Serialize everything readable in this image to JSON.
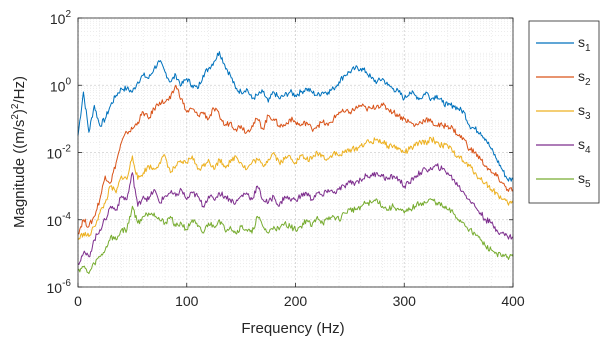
{
  "chart_data": {
    "type": "line",
    "title": "",
    "xlabel": "Frequency (Hz)",
    "ylabel": "Magnitude ((m/s²)²/Hz)",
    "xlim": [
      0,
      400
    ],
    "ylim_log10": [
      -6,
      2
    ],
    "y_scale": "log",
    "grid": true,
    "legend_position": "outside-right-top",
    "x_ticks": [
      0,
      100,
      200,
      300,
      400
    ],
    "x_tick_labels": [
      "0",
      "100",
      "200",
      "300",
      "400"
    ],
    "y_ticks_log10": [
      -6,
      -4,
      -2,
      0,
      2
    ],
    "y_tick_labels": [
      {
        "base": "10",
        "exp": "-6"
      },
      {
        "base": "10",
        "exp": "-4"
      },
      {
        "base": "10",
        "exp": "-2"
      },
      {
        "base": "10",
        "exp": "0"
      },
      {
        "base": "10",
        "exp": "2"
      }
    ],
    "x": [
      0,
      5,
      10,
      15,
      20,
      25,
      30,
      35,
      40,
      45,
      50,
      55,
      60,
      65,
      70,
      75,
      80,
      85,
      90,
      95,
      100,
      105,
      110,
      115,
      120,
      125,
      130,
      135,
      140,
      145,
      150,
      155,
      160,
      165,
      170,
      175,
      180,
      185,
      190,
      195,
      200,
      205,
      210,
      215,
      220,
      225,
      230,
      235,
      240,
      245,
      250,
      255,
      260,
      265,
      270,
      275,
      280,
      285,
      290,
      295,
      300,
      305,
      310,
      315,
      320,
      325,
      330,
      335,
      340,
      345,
      350,
      355,
      360,
      365,
      370,
      375,
      380,
      385,
      390,
      395,
      400
    ],
    "series": [
      {
        "name": "s",
        "sub": "1",
        "color": "#0072BD",
        "values_log10": [
          -1.5,
          -0.2,
          -1.4,
          -0.6,
          -1.2,
          -1.0,
          -0.6,
          -0.3,
          -0.1,
          -0.1,
          -0.2,
          0.1,
          0.3,
          0.2,
          0.5,
          0.7,
          0.4,
          0.1,
          0.3,
          0.0,
          0.2,
          0.0,
          -0.1,
          0.3,
          0.5,
          0.7,
          1.0,
          0.6,
          0.3,
          -0.1,
          -0.2,
          -0.1,
          -0.4,
          -0.3,
          -0.2,
          -0.5,
          -0.2,
          -0.4,
          -0.3,
          -0.2,
          -0.3,
          -0.2,
          -0.1,
          -0.2,
          -0.3,
          -0.2,
          -0.2,
          -0.1,
          0.1,
          0.3,
          0.4,
          0.5,
          0.5,
          0.4,
          0.2,
          0.1,
          0.2,
          0.0,
          -0.1,
          -0.2,
          -0.4,
          -0.2,
          -0.3,
          -0.4,
          -0.2,
          -0.4,
          -0.3,
          -0.5,
          -0.6,
          -0.6,
          -0.7,
          -0.8,
          -1.2,
          -1.3,
          -1.4,
          -1.6,
          -1.9,
          -2.2,
          -2.5,
          -2.8,
          -2.8
        ]
      },
      {
        "name": "s",
        "sub": "2",
        "color": "#D95319",
        "values_log10": [
          -4.4,
          -4.0,
          -4.2,
          -3.9,
          -3.4,
          -2.7,
          -2.9,
          -2.3,
          -1.7,
          -1.4,
          -1.3,
          -1.1,
          -0.8,
          -1.0,
          -0.7,
          -0.5,
          -0.5,
          -0.4,
          0.0,
          -0.4,
          -0.8,
          -0.7,
          -0.9,
          -0.8,
          -1.0,
          -0.7,
          -0.9,
          -1.2,
          -1.1,
          -1.3,
          -1.2,
          -1.4,
          -1.2,
          -1.0,
          -1.3,
          -0.9,
          -1.0,
          -1.2,
          -1.2,
          -1.0,
          -1.1,
          -1.2,
          -1.1,
          -1.3,
          -1.2,
          -1.1,
          -1.2,
          -1.0,
          -0.8,
          -0.8,
          -0.8,
          -0.7,
          -0.6,
          -0.7,
          -0.7,
          -0.6,
          -0.6,
          -0.7,
          -0.8,
          -0.9,
          -1.0,
          -1.1,
          -1.2,
          -1.1,
          -1.0,
          -1.1,
          -1.2,
          -1.2,
          -1.2,
          -1.3,
          -1.5,
          -1.6,
          -1.9,
          -2.0,
          -2.2,
          -2.4,
          -2.6,
          -2.7,
          -2.9,
          -3.1,
          -3.1
        ]
      },
      {
        "name": "s",
        "sub": "3",
        "color": "#EDB120",
        "values_log10": [
          -4.6,
          -4.4,
          -4.5,
          -4.2,
          -3.8,
          -3.5,
          -3.0,
          -3.2,
          -2.7,
          -2.8,
          -2.1,
          -2.8,
          -2.6,
          -2.4,
          -2.5,
          -2.3,
          -2.1,
          -2.6,
          -2.4,
          -2.3,
          -2.3,
          -2.1,
          -2.5,
          -2.4,
          -2.2,
          -2.5,
          -2.2,
          -2.4,
          -2.3,
          -2.1,
          -2.3,
          -2.5,
          -2.3,
          -2.2,
          -2.4,
          -2.2,
          -2.0,
          -2.3,
          -2.2,
          -2.1,
          -2.3,
          -2.1,
          -2.2,
          -2.2,
          -2.0,
          -2.1,
          -2.2,
          -2.0,
          -2.1,
          -2.0,
          -1.9,
          -1.9,
          -1.8,
          -1.7,
          -1.7,
          -1.6,
          -1.7,
          -1.8,
          -1.8,
          -1.9,
          -2.0,
          -1.9,
          -1.8,
          -1.7,
          -1.7,
          -1.6,
          -1.7,
          -1.8,
          -1.8,
          -2.0,
          -2.1,
          -2.3,
          -2.4,
          -2.6,
          -2.8,
          -2.9,
          -3.1,
          -3.2,
          -3.4,
          -3.5,
          -3.5
        ]
      },
      {
        "name": "s",
        "sub": "4",
        "color": "#7E2F8E",
        "values_log10": [
          -5.3,
          -5.0,
          -5.1,
          -4.6,
          -4.3,
          -4.0,
          -3.6,
          -3.7,
          -3.3,
          -3.4,
          -2.6,
          -3.6,
          -3.3,
          -3.4,
          -3.1,
          -3.5,
          -3.3,
          -3.2,
          -3.3,
          -3.1,
          -3.4,
          -3.2,
          -3.3,
          -3.6,
          -3.3,
          -3.4,
          -3.2,
          -3.3,
          -3.4,
          -3.5,
          -3.3,
          -3.2,
          -3.4,
          -3.0,
          -3.4,
          -3.5,
          -3.3,
          -3.6,
          -3.3,
          -3.4,
          -3.4,
          -3.3,
          -3.2,
          -3.4,
          -3.2,
          -3.3,
          -3.1,
          -3.2,
          -3.1,
          -3.0,
          -2.9,
          -2.9,
          -2.8,
          -2.7,
          -2.7,
          -2.6,
          -2.7,
          -2.8,
          -2.7,
          -2.8,
          -3.0,
          -2.9,
          -2.7,
          -2.6,
          -2.5,
          -2.5,
          -2.4,
          -2.5,
          -2.6,
          -2.8,
          -3.0,
          -3.2,
          -3.4,
          -3.6,
          -3.8,
          -4.0,
          -4.1,
          -4.3,
          -4.4,
          -4.5,
          -4.5
        ]
      },
      {
        "name": "s",
        "sub": "5",
        "color": "#77AC30",
        "values_log10": [
          -5.5,
          -5.4,
          -5.6,
          -5.3,
          -5.1,
          -4.9,
          -4.5,
          -4.6,
          -4.3,
          -4.3,
          -3.6,
          -4.1,
          -3.9,
          -3.8,
          -3.8,
          -4.0,
          -4.1,
          -3.9,
          -4.2,
          -4.1,
          -4.3,
          -4.0,
          -4.2,
          -4.4,
          -4.1,
          -4.2,
          -4.0,
          -4.3,
          -4.2,
          -4.4,
          -4.2,
          -4.3,
          -4.4,
          -3.9,
          -4.2,
          -4.4,
          -4.2,
          -4.3,
          -4.1,
          -4.2,
          -4.3,
          -4.2,
          -4.0,
          -4.2,
          -3.9,
          -4.1,
          -4.0,
          -3.9,
          -4.0,
          -3.8,
          -3.7,
          -3.7,
          -3.6,
          -3.5,
          -3.5,
          -3.4,
          -3.6,
          -3.7,
          -3.6,
          -3.7,
          -3.8,
          -3.7,
          -3.6,
          -3.5,
          -3.5,
          -3.4,
          -3.5,
          -3.6,
          -3.7,
          -3.8,
          -4.0,
          -4.1,
          -4.3,
          -4.4,
          -4.6,
          -4.8,
          -4.9,
          -5.0,
          -5.1,
          -5.1,
          -5.1
        ]
      }
    ]
  }
}
